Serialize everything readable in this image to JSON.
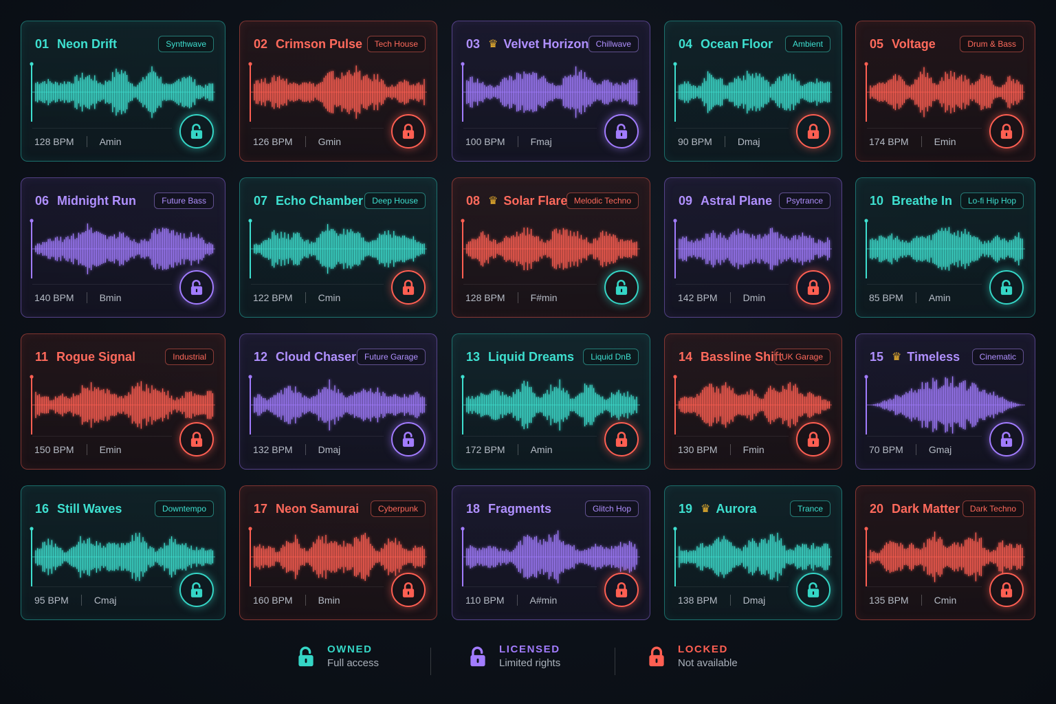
{
  "colors": {
    "owned": "#35d6c6",
    "licensed": "#a27cff",
    "locked": "#ff5f52",
    "crown": "#f5b82e"
  },
  "tracks": [
    {
      "num": "01",
      "title": "Neon Drift",
      "genre": "Synthwave",
      "bpm": "128 BPM",
      "key": "Amin",
      "status": "owned",
      "featured": false,
      "color": "teal"
    },
    {
      "num": "02",
      "title": "Crimson Pulse",
      "genre": "Tech House",
      "bpm": "126 BPM",
      "key": "Gmin",
      "status": "locked",
      "featured": false,
      "color": "red"
    },
    {
      "num": "03",
      "title": "Velvet Horizon",
      "genre": "Chillwave",
      "bpm": "100 BPM",
      "key": "Fmaj",
      "status": "licensed",
      "featured": true,
      "color": "purple"
    },
    {
      "num": "04",
      "title": "Ocean Floor",
      "genre": "Ambient",
      "bpm": "90 BPM",
      "key": "Dmaj",
      "status": "locked",
      "featured": false,
      "color": "teal"
    },
    {
      "num": "05",
      "title": "Voltage",
      "genre": "Drum & Bass",
      "bpm": "174 BPM",
      "key": "Emin",
      "status": "locked",
      "featured": false,
      "color": "red"
    },
    {
      "num": "06",
      "title": "Midnight Run",
      "genre": "Future Bass",
      "bpm": "140 BPM",
      "key": "Bmin",
      "status": "licensed",
      "featured": false,
      "color": "purple"
    },
    {
      "num": "07",
      "title": "Echo Chamber",
      "genre": "Deep House",
      "bpm": "122 BPM",
      "key": "Cmin",
      "status": "locked",
      "featured": false,
      "color": "teal"
    },
    {
      "num": "08",
      "title": "Solar Flare",
      "genre": "Melodic Techno",
      "bpm": "128 BPM",
      "key": "F#min",
      "status": "owned",
      "featured": true,
      "color": "red"
    },
    {
      "num": "09",
      "title": "Astral Plane",
      "genre": "Psytrance",
      "bpm": "142 BPM",
      "key": "Dmin",
      "status": "locked",
      "featured": false,
      "color": "purple"
    },
    {
      "num": "10",
      "title": "Breathe In",
      "genre": "Lo-fi Hip Hop",
      "bpm": "85 BPM",
      "key": "Amin",
      "status": "owned",
      "featured": false,
      "color": "teal"
    },
    {
      "num": "11",
      "title": "Rogue Signal",
      "genre": "Industrial",
      "bpm": "150 BPM",
      "key": "Emin",
      "status": "locked",
      "featured": false,
      "color": "red"
    },
    {
      "num": "12",
      "title": "Cloud Chaser",
      "genre": "Future Garage",
      "bpm": "132 BPM",
      "key": "Dmaj",
      "status": "licensed",
      "featured": false,
      "color": "purple"
    },
    {
      "num": "13",
      "title": "Liquid Dreams",
      "genre": "Liquid DnB",
      "bpm": "172 BPM",
      "key": "Amin",
      "status": "locked",
      "featured": false,
      "color": "teal"
    },
    {
      "num": "14",
      "title": "Bassline Shift",
      "genre": "UK Garage",
      "bpm": "130 BPM",
      "key": "Fmin",
      "status": "locked",
      "featured": false,
      "color": "red"
    },
    {
      "num": "15",
      "title": "Timeless",
      "genre": "Cinematic",
      "bpm": "70 BPM",
      "key": "Gmaj",
      "status": "licensed",
      "featured": true,
      "color": "purple"
    },
    {
      "num": "16",
      "title": "Still Waves",
      "genre": "Downtempo",
      "bpm": "95 BPM",
      "key": "Cmaj",
      "status": "owned",
      "featured": false,
      "color": "teal"
    },
    {
      "num": "17",
      "title": "Neon Samurai",
      "genre": "Cyberpunk",
      "bpm": "160 BPM",
      "key": "Bmin",
      "status": "locked",
      "featured": false,
      "color": "red"
    },
    {
      "num": "18",
      "title": "Fragments",
      "genre": "Glitch Hop",
      "bpm": "110 BPM",
      "key": "A#min",
      "status": "locked",
      "featured": false,
      "color": "purple"
    },
    {
      "num": "19",
      "title": "Aurora",
      "genre": "Trance",
      "bpm": "138 BPM",
      "key": "Dmaj",
      "status": "owned",
      "featured": true,
      "color": "teal"
    },
    {
      "num": "20",
      "title": "Dark Matter",
      "genre": "Dark Techno",
      "bpm": "135 BPM",
      "key": "Cmin",
      "status": "locked",
      "featured": false,
      "color": "red"
    }
  ],
  "legend": [
    {
      "key": "owned",
      "label": "OWNED",
      "sub": "Full access"
    },
    {
      "key": "licensed",
      "label": "LICENSED",
      "sub": "Limited rights"
    },
    {
      "key": "locked",
      "label": "LOCKED",
      "sub": "Not available"
    }
  ]
}
